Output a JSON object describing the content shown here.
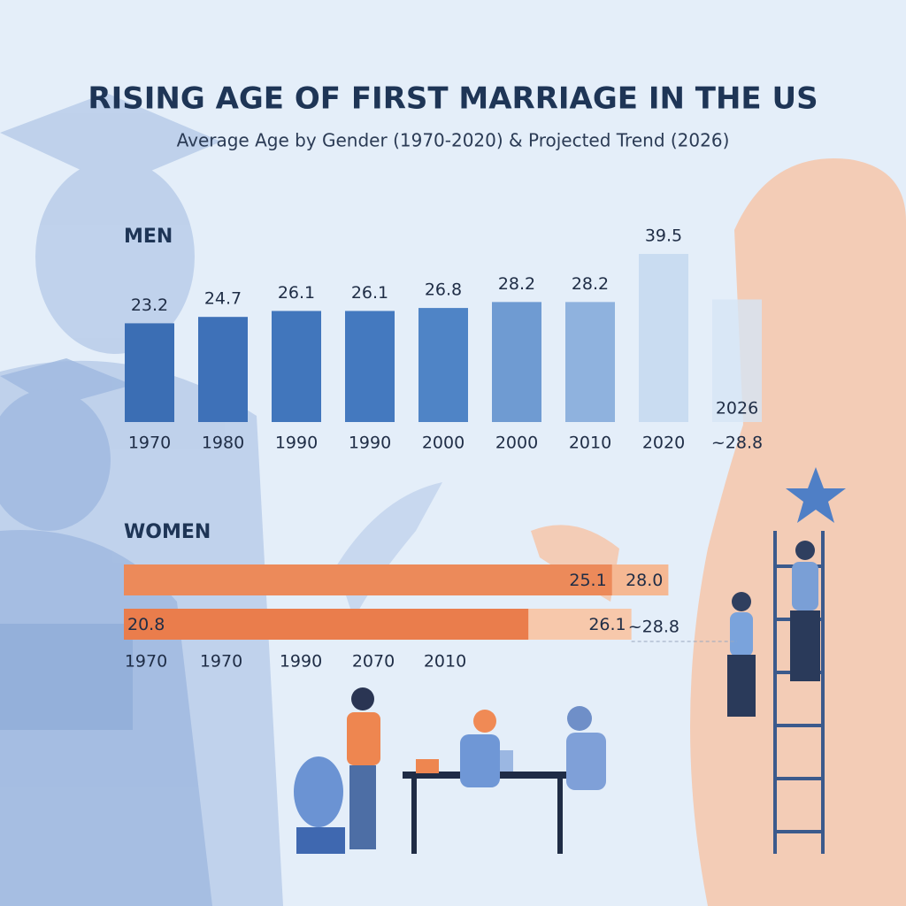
{
  "header": {
    "title": "RISING AGE OF FIRST MARRIAGE IN THE US",
    "subtitle": "Average Age by Gender (1970-2020) & Projected Trend (2026)"
  },
  "chart_data": [
    {
      "type": "bar",
      "title": "MEN",
      "categories": [
        "1970",
        "1980",
        "1990",
        "1990",
        "2000",
        "2000",
        "2010",
        "2020"
      ],
      "values": [
        23.2,
        24.7,
        26.1,
        26.1,
        26.8,
        28.2,
        28.2,
        39.5
      ],
      "colors": [
        "#3b6eb4",
        "#3e71b8",
        "#4176bc",
        "#4479bf",
        "#4f84c6",
        "#6f9bd2",
        "#8fb2de",
        "#c9dcf1"
      ],
      "projection": {
        "label": "2026",
        "value": 28.8,
        "value_label": "~28.8",
        "color": "#d6e5f5"
      }
    },
    {
      "type": "hbar",
      "title": "WOMEN",
      "rows": [
        {
          "values": [
            25.1,
            28.0
          ],
          "value_labels": [
            "25.1",
            "28.0"
          ],
          "colors": [
            "#ec8a5a",
            "#f5b893"
          ]
        },
        {
          "values": [
            20.8,
            26.1
          ],
          "value_labels": [
            "20.8",
            "26.1"
          ],
          "colors": [
            "#ea7d4c",
            "#f7c8ab"
          ]
        }
      ],
      "x_labels": [
        "1970",
        "1970",
        "1990",
        "2070",
        "2010"
      ],
      "projection": {
        "value": 28.8,
        "value_label": "~28.8"
      }
    }
  ]
}
